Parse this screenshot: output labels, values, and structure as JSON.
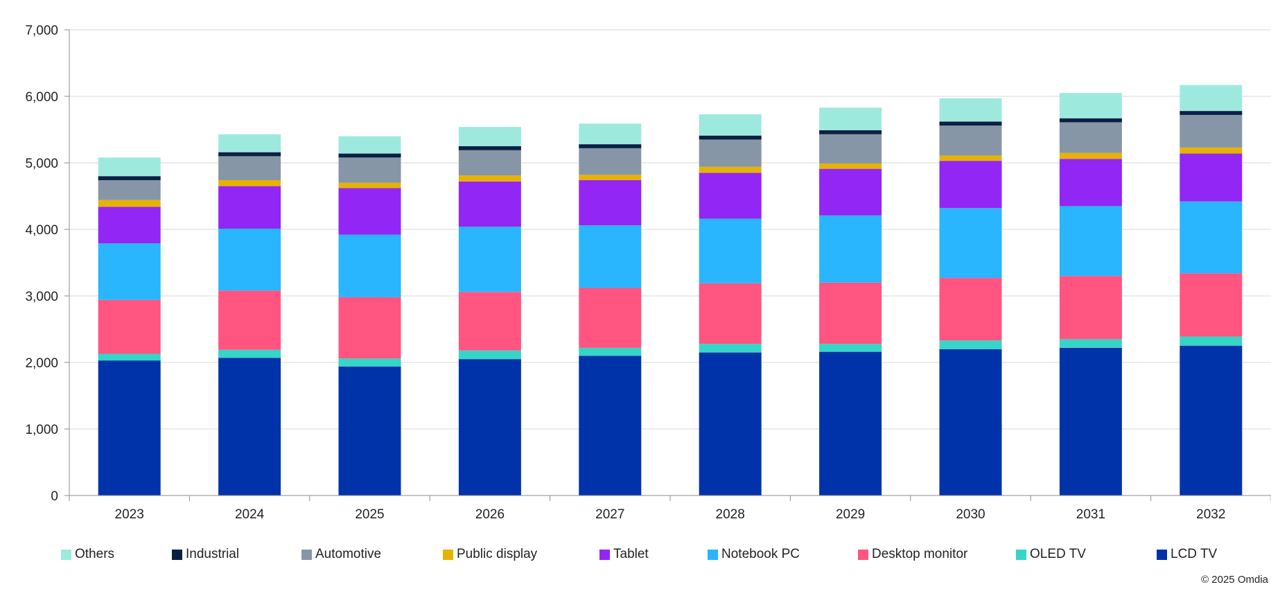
{
  "chart_data": {
    "type": "bar",
    "stacked": true,
    "categories": [
      "2023",
      "2024",
      "2025",
      "2026",
      "2027",
      "2028",
      "2029",
      "2030",
      "2031",
      "2032"
    ],
    "series": [
      {
        "name": "LCD TV",
        "color": "#0033AA",
        "values": [
          2030,
          2070,
          1940,
          2050,
          2100,
          2150,
          2160,
          2200,
          2220,
          2250
        ]
      },
      {
        "name": "OLED TV",
        "color": "#35D5C8",
        "values": [
          100,
          120,
          120,
          130,
          120,
          130,
          120,
          130,
          130,
          140
        ]
      },
      {
        "name": "Desktop monitor",
        "color": "#FF5580",
        "values": [
          810,
          890,
          920,
          880,
          900,
          910,
          920,
          940,
          950,
          950
        ]
      },
      {
        "name": "Notebook PC",
        "color": "#2AB5FF",
        "values": [
          850,
          930,
          940,
          980,
          940,
          970,
          1010,
          1050,
          1050,
          1080
        ]
      },
      {
        "name": "Tablet",
        "color": "#9226F5",
        "values": [
          550,
          640,
          700,
          680,
          680,
          690,
          700,
          710,
          710,
          720
        ]
      },
      {
        "name": "Public display",
        "color": "#E8B200",
        "values": [
          100,
          90,
          80,
          90,
          80,
          90,
          80,
          80,
          90,
          90
        ]
      },
      {
        "name": "Automotive",
        "color": "#8796A7",
        "values": [
          300,
          360,
          380,
          380,
          400,
          410,
          440,
          450,
          460,
          490
        ]
      },
      {
        "name": "Industrial",
        "color": "#0A1F44",
        "values": [
          60,
          60,
          60,
          60,
          60,
          60,
          60,
          60,
          60,
          60
        ]
      },
      {
        "name": "Others",
        "color": "#9EE9DE",
        "values": [
          280,
          270,
          260,
          290,
          310,
          320,
          340,
          350,
          380,
          390
        ]
      }
    ],
    "legend_order": [
      "Others",
      "Industrial",
      "Automotive",
      "Public display",
      "Tablet",
      "Notebook PC",
      "Desktop monitor",
      "OLED TV",
      "LCD TV"
    ],
    "ylim": [
      0,
      7000
    ],
    "yticks": [
      0,
      1000,
      2000,
      3000,
      4000,
      5000,
      6000,
      7000
    ],
    "ytick_labels": [
      "0",
      "1,000",
      "2,000",
      "3,000",
      "4,000",
      "5,000",
      "6,000",
      "7,000"
    ],
    "title": "",
    "xlabel": "",
    "ylabel": "",
    "grid": true,
    "legend_position": "bottom"
  },
  "footer": {
    "copyright": "© 2025 Omdia"
  }
}
